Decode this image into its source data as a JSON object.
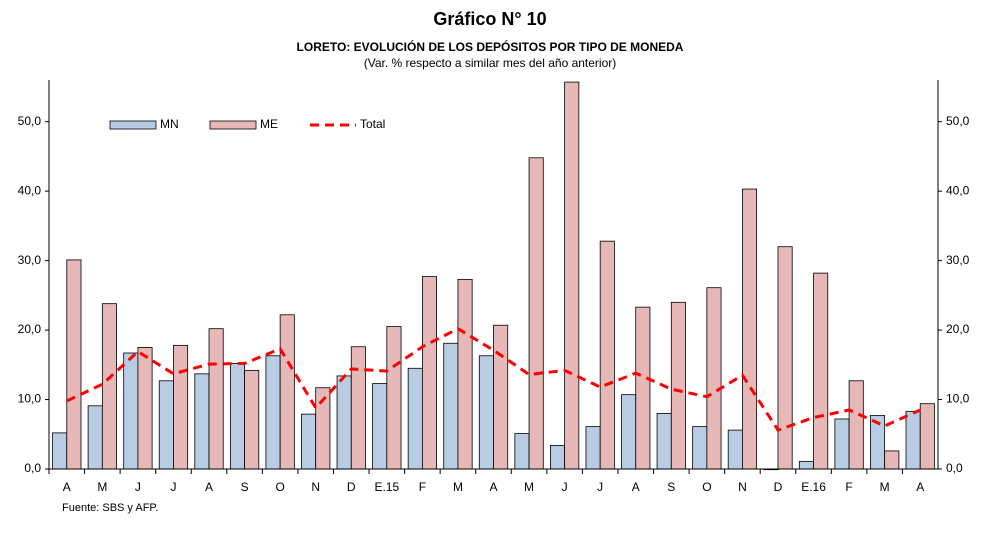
{
  "chart_data": {
    "type": "bar_line",
    "title": "Gráfico N° 10",
    "subtitle": "LORETO: EVOLUCIÓN DE LOS DEPÓSITOS POR TIPO DE MONEDA",
    "note": "(Var. % respecto a similar mes del año anterior)",
    "source": "Fuente: SBS y AFP.",
    "categories": [
      "A",
      "M",
      "J",
      "J",
      "A",
      "S",
      "O",
      "N",
      "D",
      "E.15",
      "F",
      "M",
      "A",
      "M",
      "J",
      "J",
      "A",
      "S",
      "O",
      "N",
      "D",
      "E.16",
      "F",
      "M",
      "A"
    ],
    "series": [
      {
        "name": "MN",
        "type": "bar",
        "color": "#b8cce4",
        "values": [
          5.2,
          9.1,
          16.7,
          12.7,
          13.7,
          15.2,
          16.3,
          7.9,
          13.4,
          12.3,
          14.5,
          18.1,
          16.3,
          5.1,
          3.4,
          6.1,
          10.7,
          8.0,
          6.1,
          5.6,
          -0.1,
          1.1,
          7.2,
          7.7,
          8.3
        ]
      },
      {
        "name": "ME",
        "type": "bar",
        "color": "#e6b9b8",
        "values": [
          30.1,
          23.8,
          17.5,
          17.8,
          20.2,
          14.2,
          22.2,
          11.7,
          17.6,
          20.5,
          27.7,
          27.3,
          20.7,
          44.8,
          55.7,
          32.8,
          23.3,
          24.0,
          26.1,
          40.3,
          32.0,
          28.2,
          12.7,
          2.6,
          9.4
        ]
      },
      {
        "name": "Total",
        "type": "line",
        "color": "#ff0000",
        "values": [
          9.8,
          12.2,
          16.9,
          13.7,
          15.1,
          15.2,
          17.3,
          8.8,
          14.4,
          14.1,
          17.6,
          20.2,
          17.1,
          13.6,
          14.2,
          11.8,
          13.8,
          11.5,
          10.4,
          13.5,
          5.6,
          7.4,
          8.5,
          6.2,
          8.5
        ]
      }
    ],
    "ylim": [
      0,
      56
    ],
    "yticks": [
      {
        "value": 0,
        "label": "0,0"
      },
      {
        "value": 10,
        "label": "10,0"
      },
      {
        "value": 20,
        "label": "20,0"
      },
      {
        "value": 30,
        "label": "30,0"
      },
      {
        "value": 40,
        "label": "40,0"
      },
      {
        "value": 50,
        "label": "50,0"
      }
    ],
    "legend": "top-left"
  }
}
